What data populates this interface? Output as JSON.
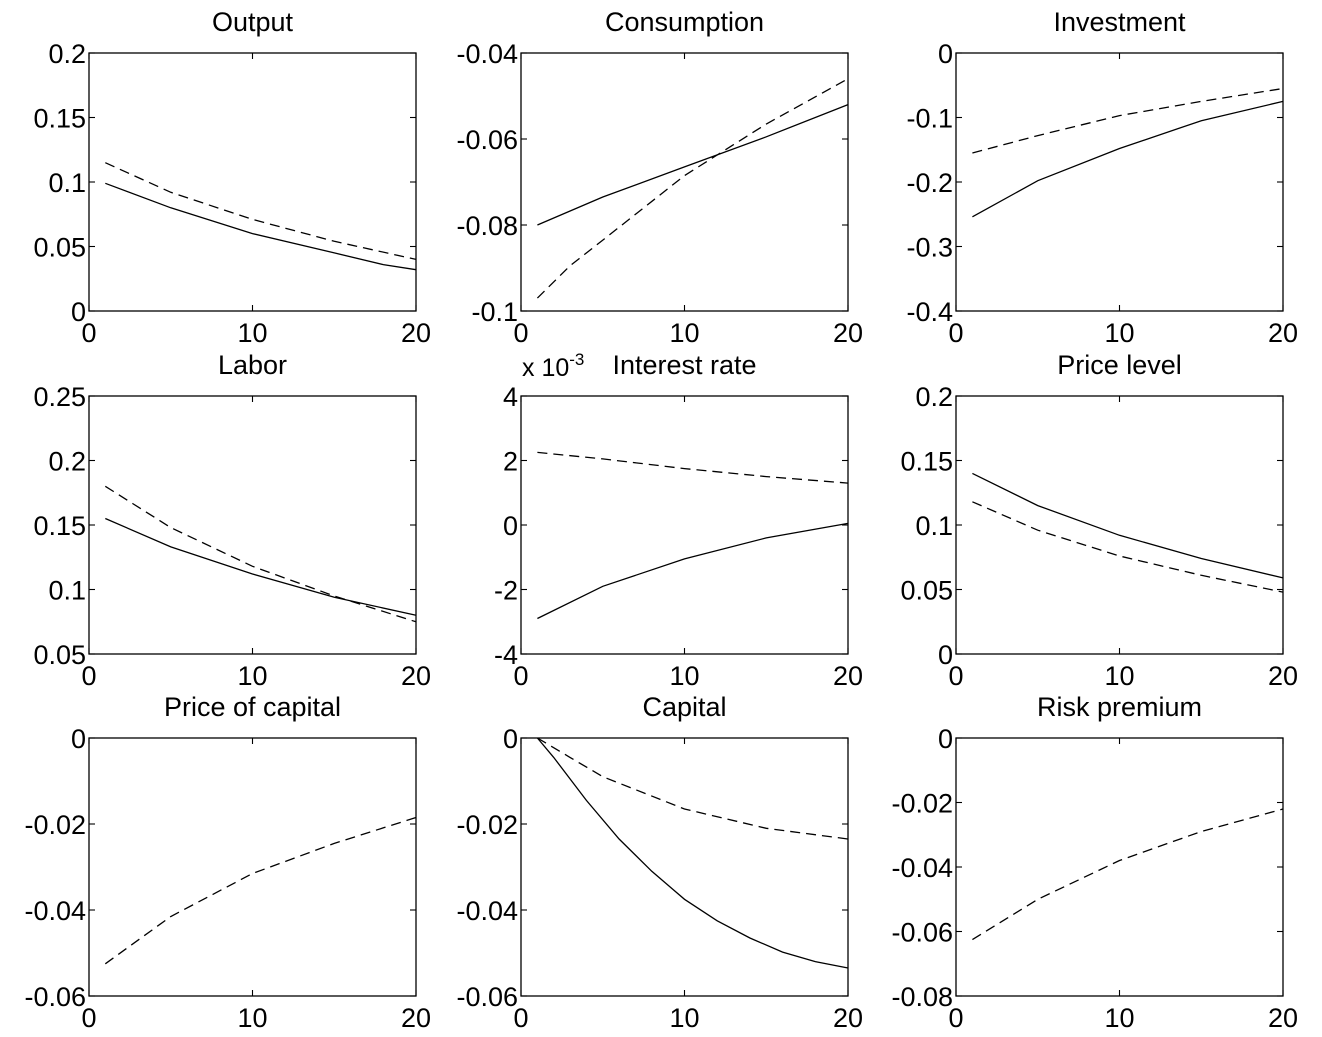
{
  "chart_data": [
    {
      "type": "line",
      "title": "Output",
      "xlim": [
        0,
        20
      ],
      "ylim": [
        0,
        0.2
      ],
      "xticks": [
        "0",
        "10",
        "20"
      ],
      "yticks": [
        "0",
        "0.05",
        "0.1",
        "0.15",
        "0.2"
      ],
      "series": [
        {
          "style": "solid",
          "x": [
            1,
            5,
            10,
            15,
            18,
            20
          ],
          "y": [
            0.099,
            0.08,
            0.06,
            0.045,
            0.036,
            0.032
          ]
        },
        {
          "style": "dashed",
          "x": [
            1,
            5,
            10,
            15,
            20
          ],
          "y": [
            0.115,
            0.092,
            0.071,
            0.054,
            0.04
          ]
        }
      ]
    },
    {
      "type": "line",
      "title": "Consumption",
      "xlim": [
        0,
        20
      ],
      "ylim": [
        -0.1,
        -0.04
      ],
      "xticks": [
        "0",
        "10",
        "20"
      ],
      "yticks": [
        "-0.1",
        "-0.08",
        "-0.06",
        "-0.04"
      ],
      "series": [
        {
          "style": "solid",
          "x": [
            1,
            5,
            10,
            15,
            20
          ],
          "y": [
            -0.08,
            -0.0735,
            -0.0665,
            -0.0595,
            -0.052
          ]
        },
        {
          "style": "dashed",
          "x": [
            1,
            3,
            5,
            10,
            15,
            20
          ],
          "y": [
            -0.097,
            -0.0895,
            -0.0835,
            -0.0685,
            -0.0565,
            -0.046
          ]
        }
      ]
    },
    {
      "type": "line",
      "title": "Investment",
      "xlim": [
        0,
        20
      ],
      "ylim": [
        -0.4,
        0
      ],
      "xticks": [
        "0",
        "10",
        "20"
      ],
      "yticks": [
        "-0.4",
        "-0.3",
        "-0.2",
        "-0.1",
        "0"
      ],
      "series": [
        {
          "style": "solid",
          "x": [
            1,
            2,
            5,
            10,
            15,
            20
          ],
          "y": [
            -0.254,
            -0.24,
            -0.198,
            -0.148,
            -0.105,
            -0.075
          ]
        },
        {
          "style": "dashed",
          "x": [
            1,
            5,
            10,
            15,
            20
          ],
          "y": [
            -0.155,
            -0.128,
            -0.097,
            -0.075,
            -0.055
          ]
        }
      ]
    },
    {
      "type": "line",
      "title": "Labor",
      "xlim": [
        0,
        20
      ],
      "ylim": [
        0.05,
        0.25
      ],
      "xticks": [
        "0",
        "10",
        "20"
      ],
      "yticks": [
        "0.05",
        "0.1",
        "0.15",
        "0.2",
        "0.25"
      ],
      "series": [
        {
          "style": "solid",
          "x": [
            1,
            5,
            10,
            15,
            20
          ],
          "y": [
            0.155,
            0.133,
            0.112,
            0.094,
            0.08
          ]
        },
        {
          "style": "dashed",
          "x": [
            1,
            5,
            10,
            15,
            20
          ],
          "y": [
            0.18,
            0.148,
            0.118,
            0.095,
            0.075
          ]
        }
      ]
    },
    {
      "type": "line",
      "title": "Interest rate",
      "multiplier": {
        "base": "x 10",
        "exponent": "-3"
      },
      "xlim": [
        0,
        20
      ],
      "ylim": [
        -4,
        4
      ],
      "xticks": [
        "0",
        "10",
        "20"
      ],
      "yticks": [
        "-4",
        "-2",
        "0",
        "2",
        "4"
      ],
      "series": [
        {
          "style": "solid",
          "x": [
            1,
            5,
            10,
            15,
            20
          ],
          "y": [
            -2.9,
            -1.9,
            -1.05,
            -0.4,
            0.05
          ]
        },
        {
          "style": "dashed",
          "x": [
            1,
            5,
            10,
            15,
            20
          ],
          "y": [
            2.25,
            2.05,
            1.75,
            1.5,
            1.3
          ]
        }
      ]
    },
    {
      "type": "line",
      "title": "Price level",
      "xlim": [
        0,
        20
      ],
      "ylim": [
        0,
        0.2
      ],
      "xticks": [
        "0",
        "10",
        "20"
      ],
      "yticks": [
        "0",
        "0.05",
        "0.1",
        "0.15",
        "0.2"
      ],
      "series": [
        {
          "style": "solid",
          "x": [
            1,
            5,
            10,
            15,
            20
          ],
          "y": [
            0.14,
            0.115,
            0.092,
            0.074,
            0.059
          ]
        },
        {
          "style": "dashed",
          "x": [
            1,
            5,
            10,
            15,
            20
          ],
          "y": [
            0.118,
            0.096,
            0.076,
            0.061,
            0.048
          ]
        }
      ]
    },
    {
      "type": "line",
      "title": "Price of capital",
      "xlim": [
        0,
        20
      ],
      "ylim": [
        -0.06,
        0
      ],
      "xticks": [
        "0",
        "10",
        "20"
      ],
      "yticks": [
        "-0.06",
        "-0.04",
        "-0.02",
        "0"
      ],
      "series": [
        {
          "style": "dashed",
          "x": [
            1,
            5,
            10,
            15,
            20
          ],
          "y": [
            -0.0525,
            -0.0415,
            -0.0315,
            -0.0245,
            -0.0185
          ]
        }
      ]
    },
    {
      "type": "line",
      "title": "Capital",
      "xlim": [
        0,
        20
      ],
      "ylim": [
        -0.06,
        0
      ],
      "xticks": [
        "0",
        "10",
        "20"
      ],
      "yticks": [
        "-0.06",
        "-0.04",
        "-0.02",
        "0"
      ],
      "series": [
        {
          "style": "solid",
          "x": [
            1,
            2,
            4,
            6,
            8,
            10,
            12,
            14,
            16,
            18,
            20
          ],
          "y": [
            0,
            -0.0045,
            -0.0145,
            -0.0235,
            -0.031,
            -0.0375,
            -0.0425,
            -0.0465,
            -0.0498,
            -0.052,
            -0.0535
          ]
        },
        {
          "style": "dashed",
          "x": [
            1,
            3,
            5,
            10,
            15,
            20
          ],
          "y": [
            0,
            -0.0045,
            -0.009,
            -0.0165,
            -0.021,
            -0.0235
          ]
        }
      ]
    },
    {
      "type": "line",
      "title": "Risk premium",
      "xlim": [
        0,
        20
      ],
      "ylim": [
        -0.08,
        0
      ],
      "xticks": [
        "0",
        "10",
        "20"
      ],
      "yticks": [
        "-0.08",
        "-0.06",
        "-0.04",
        "-0.02",
        "0"
      ],
      "series": [
        {
          "style": "dashed",
          "x": [
            1,
            5,
            10,
            15,
            20
          ],
          "y": [
            -0.0625,
            -0.05,
            -0.038,
            -0.029,
            -0.022
          ]
        }
      ]
    }
  ]
}
